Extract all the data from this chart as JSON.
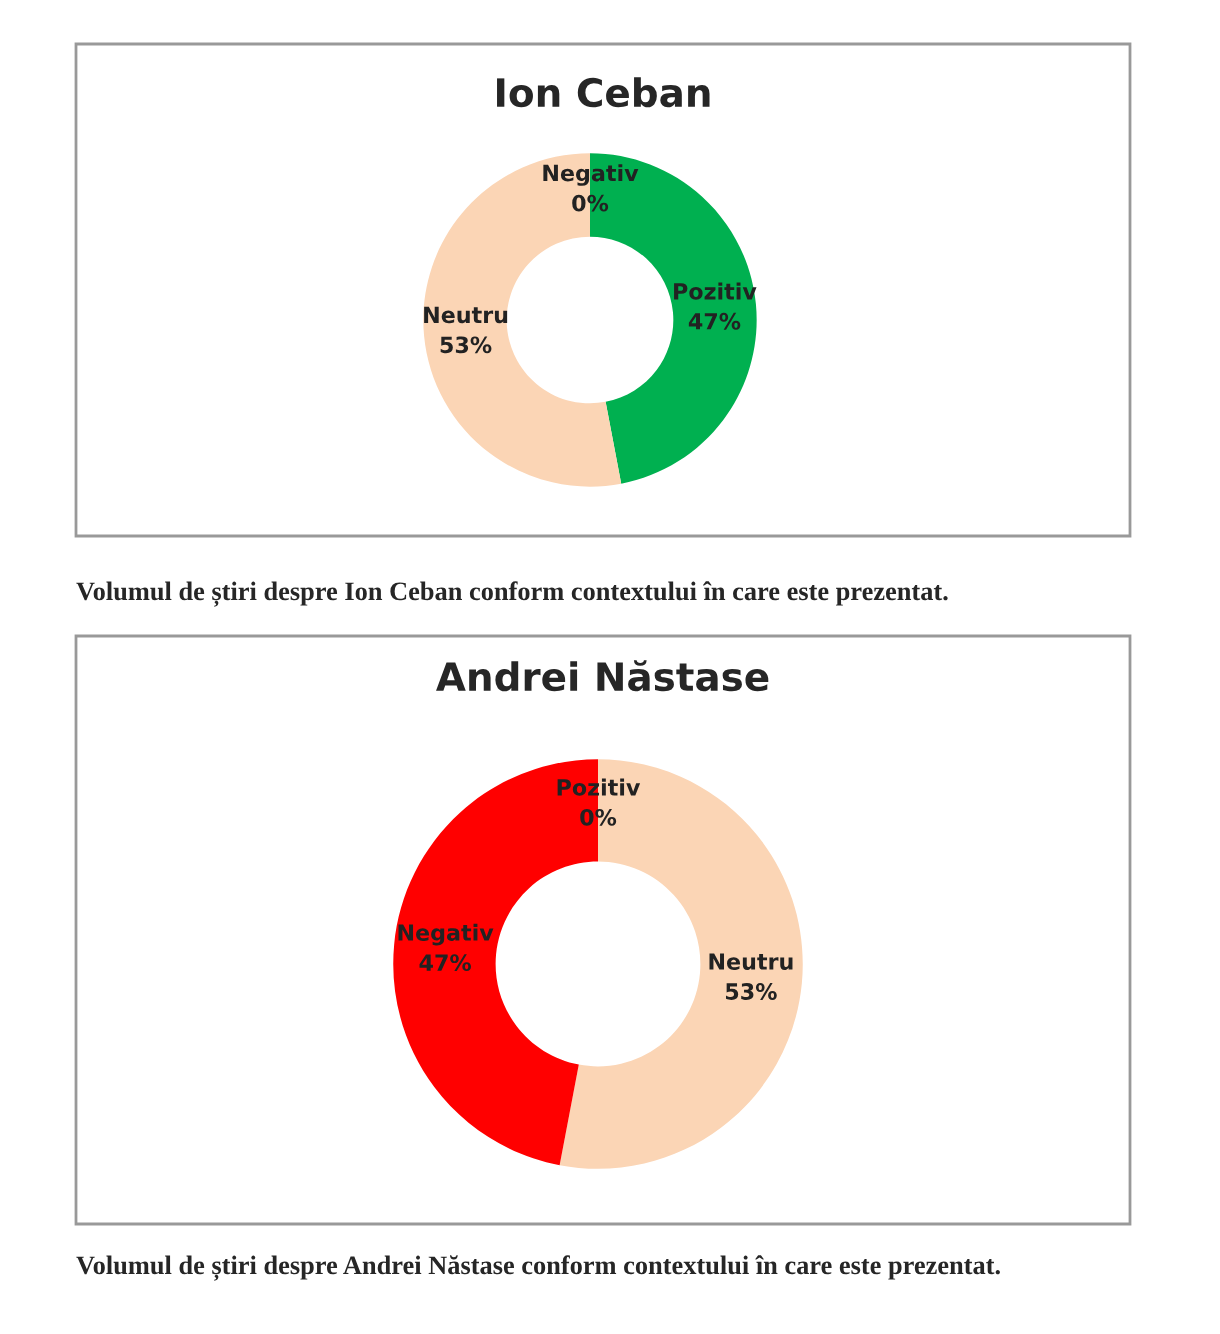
{
  "chart_data": [
    {
      "type": "donut",
      "title": "Ion Ceban",
      "categories": [
        "Pozitiv",
        "Neutru",
        "Negativ"
      ],
      "values": [
        47,
        53,
        0
      ],
      "colors": [
        "#00b050",
        "#fbd5b5",
        "#ff0000"
      ],
      "value_labels": [
        "47%",
        "53%",
        "0%"
      ],
      "annotations": [
        "Volumul de știri despre Ion Ceban conform contextului în care este prezentat."
      ]
    },
    {
      "type": "donut",
      "title": "Andrei Năstase",
      "categories": [
        "Pozitiv",
        "Neutru",
        "Negativ"
      ],
      "values": [
        0,
        53,
        47
      ],
      "colors": [
        "#00b050",
        "#fbd5b5",
        "#ff0000"
      ],
      "value_labels": [
        "0%",
        "53%",
        "47%"
      ],
      "annotations": [
        "Volumul de știri despre Andrei Năstase conform contextului în care este prezentat."
      ]
    }
  ]
}
